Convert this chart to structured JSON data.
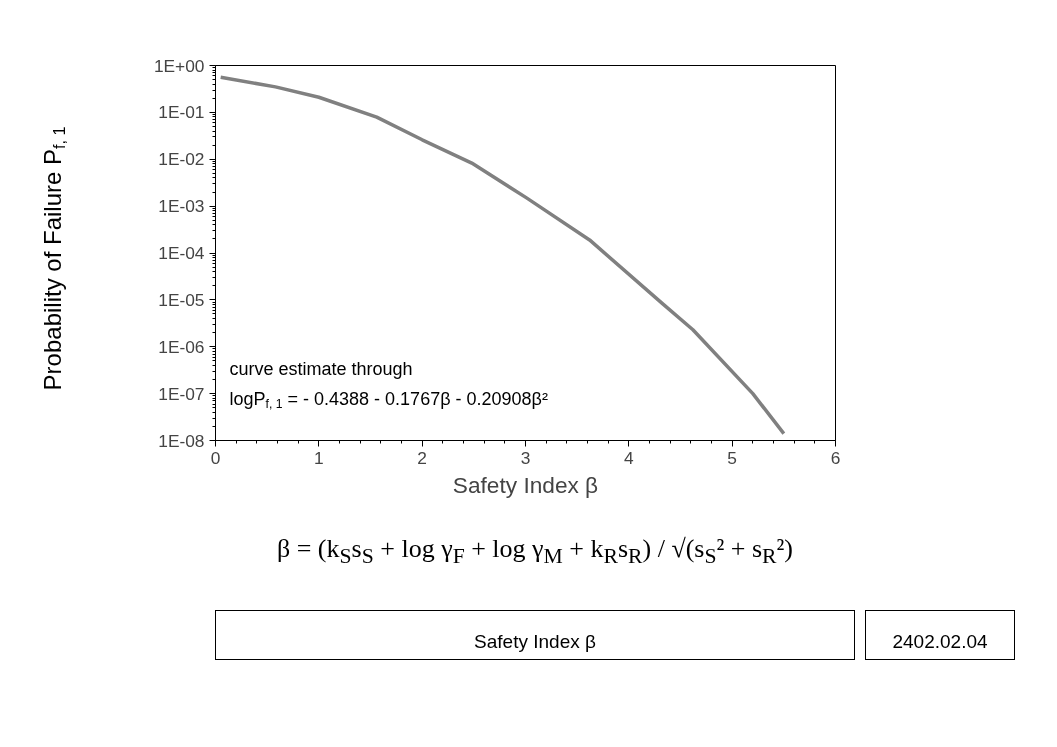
{
  "chart_data": {
    "type": "line",
    "xlabel": "Safety Index β",
    "ylabel": "Probability of Failure P$_{f, 1}$",
    "x": [
      0.05,
      0.58,
      1.0,
      1.56,
      2.0,
      2.48,
      3.01,
      3.62,
      4.32,
      4.62,
      5.2,
      5.5
    ],
    "series": [
      {
        "color": "#808080",
        "values": [
          0.56,
          0.35,
          0.21,
          0.079,
          0.026,
          0.0083,
          0.0015,
          0.00019,
          8.5e-06,
          2.3e-06,
          1e-07,
          1.4e-08
        ]
      }
    ],
    "log": "y",
    "xlim": [
      0,
      6
    ],
    "xticks": [
      0,
      1,
      2,
      3,
      4,
      5,
      6
    ],
    "ylim": [
      1e-08,
      1
    ],
    "yticks": [
      {
        "value": 1e-08,
        "label": "1E-08"
      },
      {
        "value": 1e-07,
        "label": "1E-07"
      },
      {
        "value": 1e-06,
        "label": "1E-06"
      },
      {
        "value": 1e-05,
        "label": "1E-05"
      },
      {
        "value": 0.0001,
        "label": "1E-04"
      },
      {
        "value": 0.001,
        "label": "1E-03"
      },
      {
        "value": 0.01,
        "label": "1E-02"
      },
      {
        "value": 0.1,
        "label": "1E-01"
      },
      {
        "value": 1,
        "label": "1E+00"
      }
    ],
    "grid": false,
    "marker": "none",
    "line_style": "solid",
    "annotations": [
      "curve estimate through\nlogP$_{f, 1}$ = - 0.4388 - 0.1767β - 0.20908β²",
      "β = (k$_{S}$s$_{S}$ + log γ$_{F}$ + log γ$_{M}$ + k$_{R}$s$_{R}$) / √(s$_{S}$² + s$_{R}$²)",
      "Safety Index β",
      "2402.02.04"
    ]
  }
}
